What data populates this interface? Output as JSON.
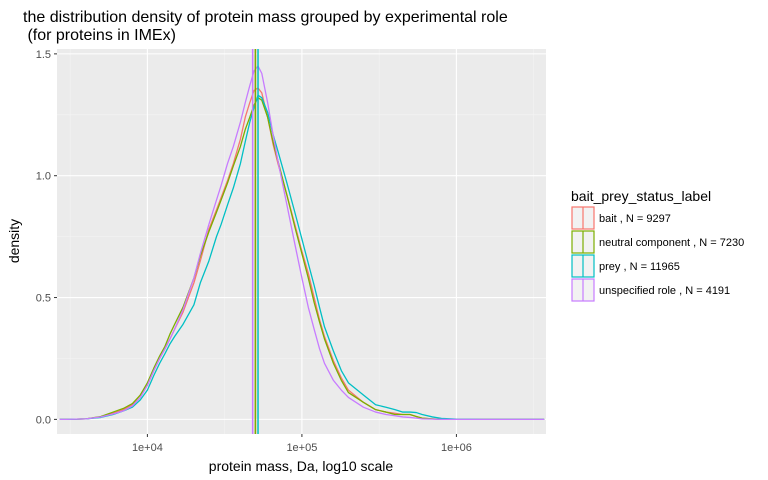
{
  "chart_data": {
    "type": "line",
    "title_lines": [
      "the distribution density of protein mass grouped by experimental role",
      " (for proteins in IMEx)"
    ],
    "xlabel": "protein mass, Da, log10 scale",
    "ylabel": "density",
    "x_scale": "log10",
    "xlim": [
      2600,
      3800000
    ],
    "ylim": [
      -0.06,
      1.52
    ],
    "x_ticks": [
      {
        "value": 10000,
        "label": "1e+04"
      },
      {
        "value": 100000,
        "label": "1e+05"
      },
      {
        "value": 1000000,
        "label": "1e+06"
      }
    ],
    "y_ticks": [
      {
        "value": 0.0,
        "label": "0.0"
      },
      {
        "value": 0.5,
        "label": "0.5"
      },
      {
        "value": 1.0,
        "label": "1.0"
      },
      {
        "value": 1.5,
        "label": "1.5"
      }
    ],
    "grid": true,
    "legend": {
      "title": "bait_prey_status_label",
      "placement": "right"
    },
    "x": [
      2700,
      3000,
      4000,
      5000,
      6000,
      7000,
      8000,
      9000,
      10000,
      11000,
      12000,
      13000,
      14000,
      15000,
      17000,
      20000,
      22000,
      25000,
      28000,
      30000,
      33000,
      36000,
      40000,
      43000,
      46000,
      49000,
      52000,
      55000,
      60000,
      65000,
      70000,
      80000,
      90000,
      100000,
      110000,
      120000,
      130000,
      140000,
      160000,
      180000,
      200000,
      250000,
      300000,
      350000,
      400000,
      450000,
      500000,
      550000,
      600000,
      700000,
      800000,
      1000000,
      1500000,
      2000000,
      3000000,
      3700000
    ],
    "series": [
      {
        "name": "bait , N = 9297",
        "color": "#F8766D",
        "vline": 50000,
        "values": [
          0,
          0,
          0.002,
          0.01,
          0.025,
          0.04,
          0.06,
          0.1,
          0.14,
          0.2,
          0.25,
          0.29,
          0.33,
          0.37,
          0.44,
          0.56,
          0.65,
          0.78,
          0.86,
          0.91,
          0.98,
          1.05,
          1.15,
          1.24,
          1.3,
          1.35,
          1.36,
          1.34,
          1.24,
          1.13,
          1.05,
          0.92,
          0.8,
          0.69,
          0.6,
          0.5,
          0.41,
          0.34,
          0.24,
          0.17,
          0.12,
          0.07,
          0.04,
          0.03,
          0.025,
          0.02,
          0.02,
          0.012,
          0.005,
          0.002,
          0,
          0,
          0,
          0,
          0,
          0
        ]
      },
      {
        "name": "neutral component , N = 7230",
        "color": "#7CAE00",
        "vline": 50000,
        "values": [
          0,
          0,
          0.002,
          0.012,
          0.03,
          0.045,
          0.065,
          0.1,
          0.15,
          0.21,
          0.26,
          0.3,
          0.35,
          0.39,
          0.46,
          0.58,
          0.67,
          0.77,
          0.85,
          0.9,
          0.97,
          1.04,
          1.12,
          1.19,
          1.24,
          1.29,
          1.32,
          1.31,
          1.24,
          1.14,
          1.06,
          0.92,
          0.79,
          0.68,
          0.58,
          0.48,
          0.4,
          0.33,
          0.23,
          0.16,
          0.11,
          0.07,
          0.04,
          0.03,
          0.02,
          0.02,
          0.02,
          0.012,
          0.005,
          0.002,
          0,
          0,
          0,
          0,
          0,
          0
        ]
      },
      {
        "name": "prey , N = 11965",
        "color": "#00BFC4",
        "vline": 52000,
        "values": [
          0,
          0,
          0.002,
          0.008,
          0.02,
          0.035,
          0.05,
          0.08,
          0.12,
          0.18,
          0.23,
          0.27,
          0.31,
          0.34,
          0.39,
          0.47,
          0.56,
          0.65,
          0.75,
          0.8,
          0.88,
          0.95,
          1.05,
          1.14,
          1.22,
          1.28,
          1.33,
          1.32,
          1.26,
          1.17,
          1.1,
          0.97,
          0.85,
          0.74,
          0.64,
          0.55,
          0.46,
          0.38,
          0.28,
          0.2,
          0.15,
          0.1,
          0.06,
          0.05,
          0.04,
          0.03,
          0.03,
          0.028,
          0.02,
          0.01,
          0.004,
          0.001,
          0,
          0,
          0,
          0
        ]
      },
      {
        "name": "unspecified role , N = 4191",
        "color": "#C77CFF",
        "vline": 48000,
        "values": [
          0,
          0,
          0.002,
          0.01,
          0.022,
          0.035,
          0.055,
          0.09,
          0.14,
          0.2,
          0.25,
          0.29,
          0.33,
          0.37,
          0.45,
          0.58,
          0.68,
          0.8,
          0.9,
          0.96,
          1.05,
          1.12,
          1.22,
          1.3,
          1.37,
          1.43,
          1.45,
          1.42,
          1.3,
          1.17,
          1.06,
          0.88,
          0.72,
          0.58,
          0.46,
          0.37,
          0.29,
          0.23,
          0.16,
          0.12,
          0.09,
          0.05,
          0.03,
          0.02,
          0.015,
          0.01,
          0.008,
          0.005,
          0.002,
          0.001,
          0,
          0,
          0,
          0,
          0,
          0
        ]
      }
    ]
  }
}
